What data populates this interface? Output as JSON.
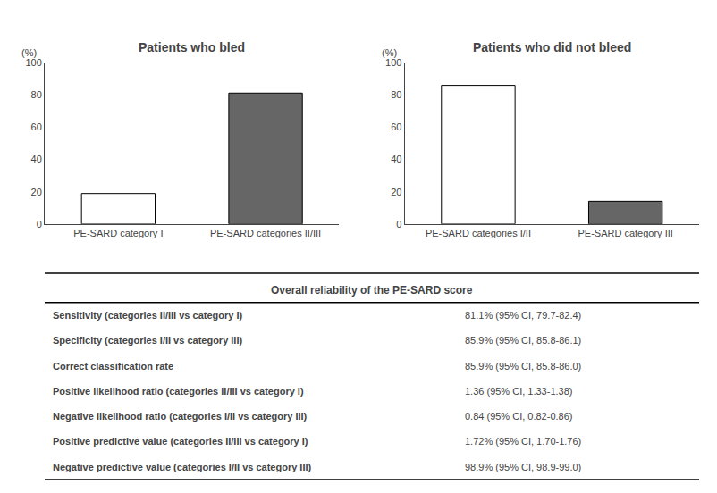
{
  "chart_data": [
    {
      "type": "bar",
      "title": "Patients who bled",
      "categories": [
        "PE-SARD category I",
        "PE-SARD categories II/III"
      ],
      "values": [
        18.9,
        81.1
      ],
      "colors": [
        "white",
        "#666666"
      ],
      "ylabel": "(%)",
      "ylim": [
        0,
        100
      ],
      "yticks": [
        0,
        20,
        40,
        60,
        80,
        100
      ],
      "grid": false
    },
    {
      "type": "bar",
      "title": "Patients who did not bleed",
      "categories": [
        "PE-SARD categories I/II",
        "PE-SARD category III"
      ],
      "values": [
        85.9,
        14.1
      ],
      "colors": [
        "white",
        "#666666"
      ],
      "ylabel": "(%)",
      "ylim": [
        0,
        100
      ],
      "yticks": [
        0,
        20,
        40,
        60,
        80,
        100
      ],
      "grid": false
    },
    {
      "type": "table",
      "title": "Overall reliability of the PE-SARD score",
      "rows": [
        [
          "Sensitivity (categories II/III vs category I)",
          "81.1% (95% CI, 79.7-82.4)"
        ],
        [
          "Specificity (categories I/II vs category III)",
          "85.9% (95% CI, 85.8-86.1)"
        ],
        [
          "Correct classification rate",
          "85.9% (95% CI, 85.8-86.0)"
        ],
        [
          "Positive likelihood ratio (categories II/III vs category I)",
          "1.36 (95% CI, 1.33-1.38)"
        ],
        [
          "Negative likelihood ratio (categories I/II vs category III)",
          "0.84 (95% CI, 0.82-0.86)"
        ],
        [
          "Positive predictive value (categories II/III vs category I)",
          "1.72% (95% CI, 1.70-1.76)"
        ],
        [
          "Negative predictive value (categories I/II vs category III)",
          "98.9% (95% CI, 98.9-99.0)"
        ]
      ]
    }
  ]
}
